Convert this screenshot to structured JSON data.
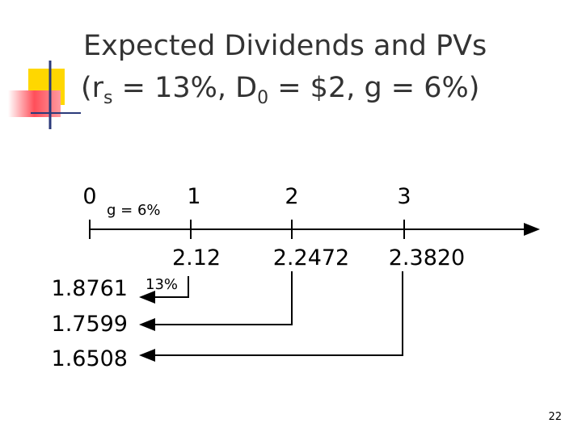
{
  "title": {
    "line1": "Expected Dividends and PVs",
    "line2": [
      "(r",
      "s",
      " = 13%, D",
      "0",
      " = $2, g = 6%)"
    ]
  },
  "timeline": {
    "periods": [
      "0",
      "1",
      "2",
      "3"
    ],
    "growth_label": "g = 6%",
    "dividends": [
      "2.12",
      "2.2472",
      "2.3820"
    ],
    "discount_label": "13%",
    "present_values": [
      "1.8761",
      "1.7599",
      "1.6508"
    ]
  },
  "footer": {
    "page_number": "22"
  }
}
